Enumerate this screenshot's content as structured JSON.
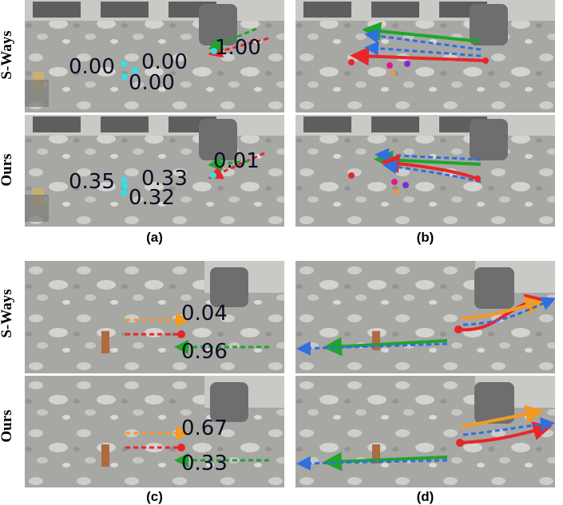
{
  "row_labels": [
    "S-Ways",
    "Ours",
    "S-Ways",
    "Ours"
  ],
  "captions": [
    "(a)",
    "(b)",
    "(c)",
    "(d)"
  ],
  "panel_a": {
    "sways": {
      "p1": "0.00",
      "p2": "0.00",
      "p3": "0.00",
      "p4": "1.00"
    },
    "ours": {
      "p1": "0.35",
      "p2": "0.33",
      "p3": "0.32",
      "p4": "0.01"
    }
  },
  "panel_c": {
    "sways": {
      "top": "0.04",
      "bottom": "0.96"
    },
    "ours": {
      "top": "0.67",
      "bottom": "0.33"
    }
  },
  "colors": {
    "red": "#e8262a",
    "green": "#1fa52a",
    "blue": "#2f6fe0",
    "orange": "#f39a23",
    "cyan": "#33e0e6",
    "magenta": "#e0198a",
    "purple": "#7b2fd1"
  }
}
